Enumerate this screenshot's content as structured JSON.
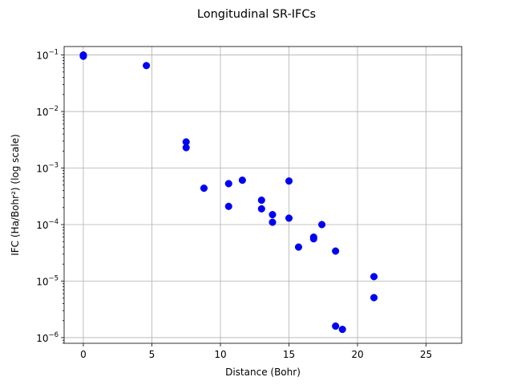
{
  "chart_data": {
    "type": "scatter",
    "title": "Longitudinal SR-IFCs",
    "xlabel": "Distance (Bohr)",
    "ylabel": "IFC (Ha/Bohr²) (log scale)",
    "xlim": [
      -1.4,
      27.6
    ],
    "ylim_log10": [
      -6.1,
      -0.85
    ],
    "yscale": "log",
    "grid": true,
    "marker_color": "#0000ff",
    "x_ticks": [
      0,
      5,
      10,
      15,
      20,
      25
    ],
    "x_tick_labels": [
      "0",
      "5",
      "10",
      "15",
      "20",
      "25"
    ],
    "y_tick_exponents": [
      -1,
      -2,
      -3,
      -4,
      -5,
      -6
    ],
    "y_tick_labels": [
      {
        "base": "10",
        "exp": "−1"
      },
      {
        "base": "10",
        "exp": "−2"
      },
      {
        "base": "10",
        "exp": "−3"
      },
      {
        "base": "10",
        "exp": "−4"
      },
      {
        "base": "10",
        "exp": "−5"
      },
      {
        "base": "10",
        "exp": "−6"
      }
    ],
    "points": [
      {
        "x": 0.0,
        "y": 0.1
      },
      {
        "x": 0.0,
        "y": 0.095
      },
      {
        "x": 4.6,
        "y": 0.065
      },
      {
        "x": 7.5,
        "y": 0.0029
      },
      {
        "x": 7.5,
        "y": 0.0023
      },
      {
        "x": 8.8,
        "y": 0.00044
      },
      {
        "x": 10.6,
        "y": 0.00053
      },
      {
        "x": 10.6,
        "y": 0.00021
      },
      {
        "x": 11.6,
        "y": 0.00061
      },
      {
        "x": 13.0,
        "y": 0.00027
      },
      {
        "x": 13.0,
        "y": 0.00019
      },
      {
        "x": 13.8,
        "y": 0.00015
      },
      {
        "x": 13.8,
        "y": 0.00011
      },
      {
        "x": 15.0,
        "y": 0.00059
      },
      {
        "x": 15.0,
        "y": 0.00013
      },
      {
        "x": 15.7,
        "y": 4e-05
      },
      {
        "x": 16.8,
        "y": 6e-05
      },
      {
        "x": 16.8,
        "y": 5.6e-05
      },
      {
        "x": 17.4,
        "y": 0.0001
      },
      {
        "x": 18.4,
        "y": 3.4e-05
      },
      {
        "x": 18.4,
        "y": 1.6e-06
      },
      {
        "x": 18.9,
        "y": 1.4e-06
      },
      {
        "x": 21.2,
        "y": 1.2e-05
      },
      {
        "x": 21.2,
        "y": 5.1e-06
      }
    ]
  }
}
